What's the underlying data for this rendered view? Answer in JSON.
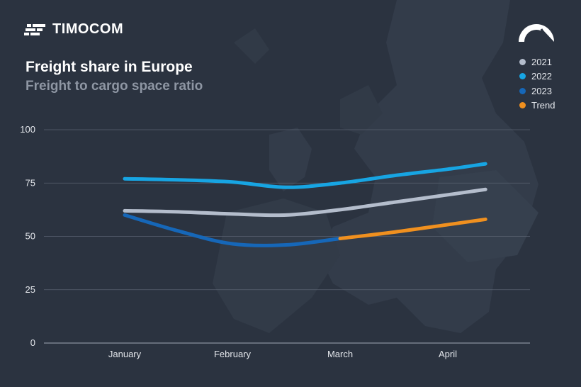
{
  "brand": {
    "logo_text": "TIMOCOM",
    "logo_icon": "timocom-logo-icon",
    "gauge_icon": "gauge-icon"
  },
  "colors": {
    "background": "#2b3340",
    "grid": "#5a6270",
    "2021": "#b4bdcc",
    "2022": "#17a5e3",
    "2023": "#1667b8",
    "Trend": "#f0901f"
  },
  "chart_data": {
    "type": "line",
    "title": "Freight share in Europe",
    "subtitle": "Freight to cargo space ratio",
    "xlabel": "",
    "ylabel": "",
    "categories": [
      "January",
      "February",
      "March",
      "April"
    ],
    "ylim": [
      0,
      100
    ],
    "yticks": [
      0,
      25,
      50,
      75,
      100
    ],
    "grid": true,
    "legend_position": "top-right",
    "legend": [
      "2021",
      "2022",
      "2023",
      "Trend"
    ],
    "series": [
      {
        "name": "2021",
        "x": [
          0,
          0.5,
          1,
          1.5,
          2,
          2.5,
          3,
          3.35
        ],
        "values": [
          62,
          61.5,
          60.5,
          60,
          62.5,
          66,
          69.5,
          72
        ]
      },
      {
        "name": "2022",
        "x": [
          0,
          0.5,
          1,
          1.5,
          2,
          2.5,
          3,
          3.35
        ],
        "values": [
          77,
          76.5,
          75.5,
          73,
          75,
          78.5,
          81.5,
          84
        ]
      },
      {
        "name": "2023",
        "x": [
          0,
          0.5,
          1,
          1.5,
          2
        ],
        "values": [
          60,
          52.5,
          46.5,
          46,
          49
        ]
      },
      {
        "name": "Trend",
        "x": [
          2,
          2.5,
          3,
          3.35
        ],
        "values": [
          49,
          52,
          55.5,
          58
        ]
      }
    ]
  }
}
